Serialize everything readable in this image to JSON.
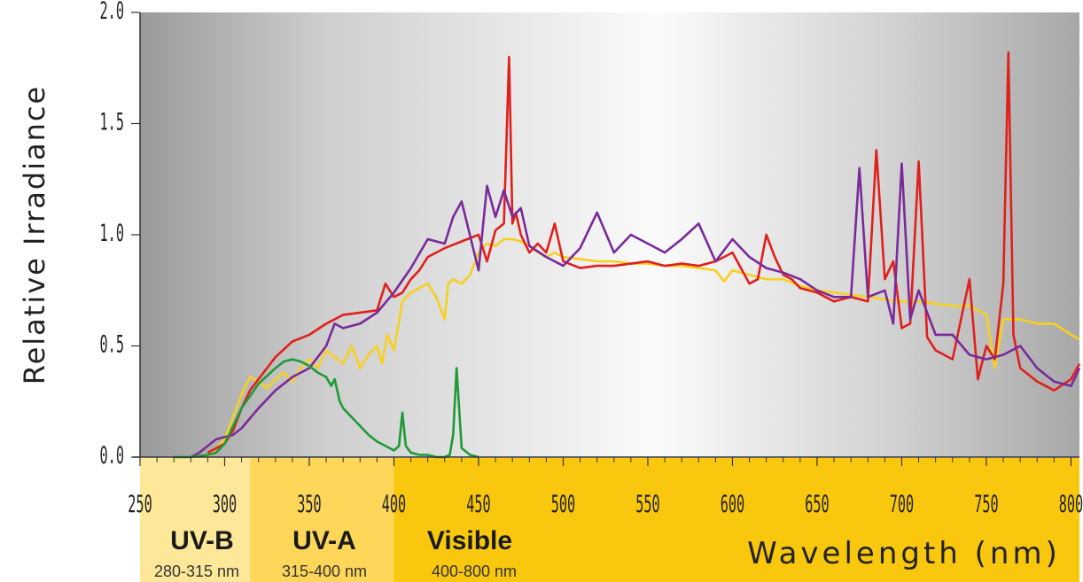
{
  "chart_data": {
    "type": "line",
    "title": "",
    "xlabel": "Wavelength (nm)",
    "ylabel": "Relative Irradiance",
    "xlim": [
      250,
      805
    ],
    "ylim": [
      0,
      2.0
    ],
    "x_ticks": [
      "250",
      "300",
      "350",
      "400",
      "450",
      "500",
      "550",
      "600",
      "650",
      "700",
      "750",
      "800"
    ],
    "y_ticks": [
      "0.0",
      "0.5",
      "1.0",
      "1.5",
      "2.0"
    ],
    "grid": false,
    "legend": "none",
    "bands": [
      {
        "name": "UV-B",
        "range": "280-315 nm",
        "start": 280,
        "end": 315,
        "color": "#fde89a"
      },
      {
        "name": "UV-A",
        "range": "315-400 nm",
        "start": 315,
        "end": 400,
        "color": "#fdd65a"
      },
      {
        "name": "Visible",
        "range": "400-800 nm",
        "start": 400,
        "end": 805,
        "color": "#f9c80e"
      }
    ],
    "series": [
      {
        "color": "#f7d020",
        "x": [
          290,
          300,
          305,
          310,
          315,
          320,
          325,
          330,
          335,
          340,
          345,
          350,
          355,
          360,
          365,
          370,
          375,
          380,
          385,
          390,
          393,
          396,
          400,
          405,
          410,
          415,
          420,
          425,
          430,
          432,
          435,
          440,
          445,
          450,
          455,
          460,
          465,
          470,
          475,
          480,
          485,
          490,
          495,
          500,
          510,
          520,
          530,
          540,
          550,
          560,
          570,
          580,
          590,
          595,
          600,
          610,
          620,
          630,
          640,
          650,
          660,
          670,
          680,
          690,
          700,
          710,
          720,
          730,
          740,
          750,
          755,
          760,
          770,
          780,
          790,
          800,
          805
        ],
        "y": [
          0.0,
          0.08,
          0.18,
          0.28,
          0.36,
          0.34,
          0.31,
          0.35,
          0.38,
          0.34,
          0.4,
          0.44,
          0.4,
          0.48,
          0.45,
          0.42,
          0.5,
          0.4,
          0.46,
          0.5,
          0.42,
          0.55,
          0.48,
          0.7,
          0.74,
          0.76,
          0.78,
          0.72,
          0.62,
          0.78,
          0.8,
          0.78,
          0.82,
          0.92,
          0.96,
          0.95,
          0.98,
          0.98,
          0.97,
          0.95,
          0.92,
          0.9,
          0.92,
          0.9,
          0.89,
          0.88,
          0.88,
          0.87,
          0.87,
          0.86,
          0.86,
          0.85,
          0.84,
          0.79,
          0.84,
          0.82,
          0.8,
          0.8,
          0.77,
          0.75,
          0.74,
          0.73,
          0.72,
          0.71,
          0.7,
          0.7,
          0.69,
          0.68,
          0.68,
          0.64,
          0.4,
          0.62,
          0.62,
          0.6,
          0.6,
          0.55,
          0.53
        ]
      },
      {
        "color": "#e0201c",
        "x": [
          290,
          300,
          305,
          310,
          315,
          320,
          325,
          330,
          340,
          350,
          360,
          370,
          380,
          390,
          395,
          400,
          405,
          410,
          415,
          420,
          430,
          440,
          450,
          455,
          460,
          465,
          468,
          470,
          472,
          475,
          480,
          485,
          490,
          495,
          500,
          510,
          520,
          530,
          540,
          550,
          560,
          570,
          580,
          590,
          600,
          610,
          615,
          620,
          625,
          630,
          635,
          640,
          650,
          660,
          670,
          680,
          685,
          690,
          695,
          700,
          705,
          710,
          715,
          720,
          730,
          740,
          745,
          750,
          755,
          760,
          763,
          766,
          770,
          780,
          790,
          800,
          805
        ],
        "y": [
          0.02,
          0.06,
          0.12,
          0.22,
          0.3,
          0.35,
          0.4,
          0.45,
          0.52,
          0.55,
          0.6,
          0.64,
          0.65,
          0.66,
          0.78,
          0.72,
          0.74,
          0.8,
          0.84,
          0.9,
          0.94,
          0.97,
          1.0,
          0.88,
          1.02,
          1.05,
          1.8,
          1.05,
          1.1,
          1.0,
          0.92,
          0.96,
          0.92,
          1.05,
          0.88,
          0.85,
          0.86,
          0.86,
          0.87,
          0.88,
          0.86,
          0.87,
          0.86,
          0.88,
          0.92,
          0.78,
          0.8,
          1.0,
          0.9,
          0.82,
          0.8,
          0.76,
          0.74,
          0.7,
          0.72,
          0.7,
          1.38,
          0.8,
          0.88,
          0.58,
          0.6,
          1.33,
          0.54,
          0.48,
          0.44,
          0.8,
          0.35,
          0.5,
          0.44,
          0.78,
          1.82,
          0.55,
          0.4,
          0.34,
          0.3,
          0.35,
          0.42
        ]
      },
      {
        "color": "#7a2a9a",
        "x": [
          280,
          285,
          290,
          295,
          300,
          305,
          310,
          320,
          330,
          340,
          350,
          360,
          365,
          370,
          380,
          390,
          400,
          410,
          420,
          430,
          435,
          440,
          450,
          455,
          460,
          465,
          470,
          475,
          480,
          490,
          500,
          510,
          520,
          530,
          540,
          550,
          560,
          570,
          580,
          590,
          600,
          610,
          620,
          630,
          640,
          650,
          660,
          670,
          675,
          680,
          690,
          695,
          700,
          705,
          710,
          720,
          730,
          740,
          750,
          760,
          770,
          780,
          790,
          800,
          805
        ],
        "y": [
          0.0,
          0.02,
          0.05,
          0.08,
          0.09,
          0.1,
          0.13,
          0.22,
          0.3,
          0.36,
          0.4,
          0.5,
          0.6,
          0.58,
          0.6,
          0.65,
          0.74,
          0.85,
          0.98,
          0.96,
          1.08,
          1.15,
          0.84,
          1.22,
          1.08,
          1.2,
          1.08,
          1.12,
          0.95,
          0.9,
          0.86,
          0.94,
          1.1,
          0.92,
          1.0,
          0.96,
          0.92,
          0.98,
          1.05,
          0.88,
          0.98,
          0.9,
          0.85,
          0.83,
          0.8,
          0.75,
          0.72,
          0.72,
          1.3,
          0.72,
          0.75,
          0.6,
          1.32,
          0.62,
          0.75,
          0.55,
          0.55,
          0.46,
          0.44,
          0.46,
          0.5,
          0.4,
          0.34,
          0.32,
          0.4
        ]
      },
      {
        "color": "#1e9a38",
        "x": [
          270,
          280,
          290,
          295,
          300,
          305,
          310,
          320,
          330,
          335,
          340,
          345,
          350,
          355,
          360,
          363,
          365,
          368,
          370,
          375,
          380,
          385,
          390,
          395,
          400,
          403,
          405,
          407,
          410,
          415,
          420,
          425,
          430,
          433,
          435,
          437,
          440,
          445,
          450
        ],
        "y": [
          0.0,
          0.0,
          0.01,
          0.02,
          0.06,
          0.14,
          0.22,
          0.33,
          0.4,
          0.43,
          0.44,
          0.43,
          0.41,
          0.38,
          0.36,
          0.32,
          0.35,
          0.25,
          0.22,
          0.18,
          0.14,
          0.1,
          0.07,
          0.05,
          0.03,
          0.05,
          0.2,
          0.05,
          0.02,
          0.01,
          0.01,
          0.0,
          0.0,
          0.01,
          0.1,
          0.4,
          0.04,
          0.01,
          0.0
        ]
      }
    ]
  }
}
